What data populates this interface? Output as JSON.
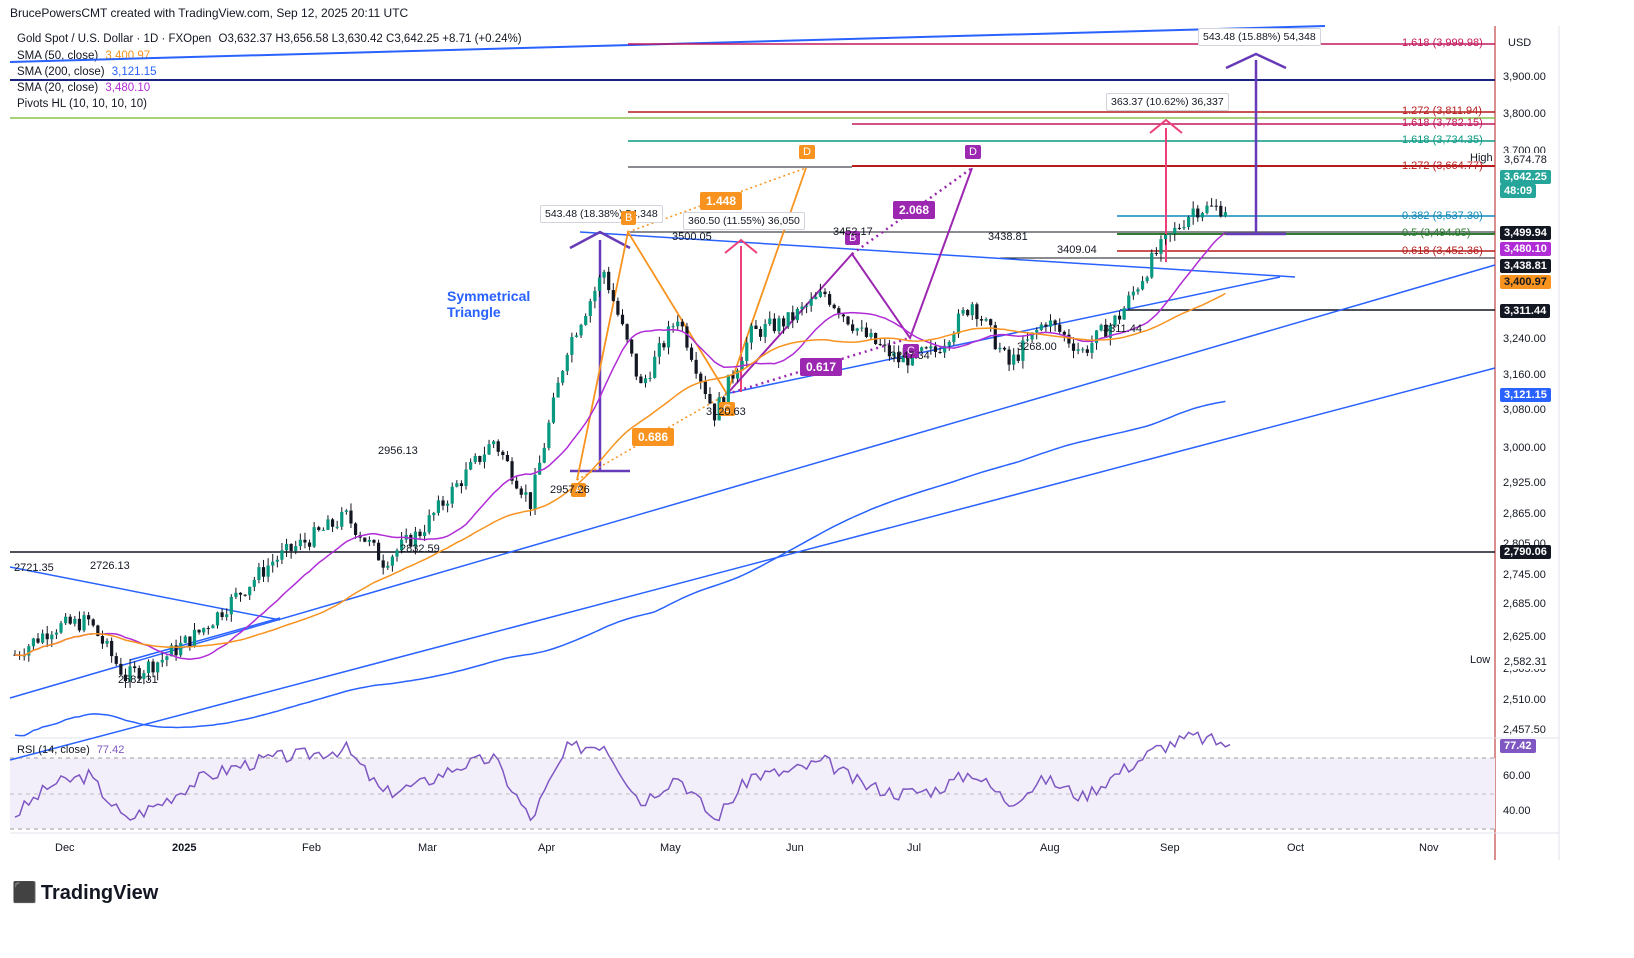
{
  "header": {
    "author_line": "BrucePowersCMT created with TradingView.com, Sep 12, 2025 20:11 UTC"
  },
  "legend": {
    "symbol": "Gold Spot / U.S. Dollar · 1D · FXOpen",
    "ohlc": "O3,632.37 H3,656.58 L3,630.42 C3,642.25 +8.71 (+0.24%)",
    "sma50": {
      "label": "SMA (50, close)",
      "value": "3,400.97",
      "color": "#f7931e"
    },
    "sma200": {
      "label": "SMA (200, close)",
      "value": "3,121.15",
      "color": "#2962ff"
    },
    "sma20": {
      "label": "SMA (20, close)",
      "value": "3,480.10",
      "color": "#b02cd6"
    },
    "pivots": {
      "label": "Pivots HL (10, 10, 10, 10)"
    }
  },
  "currency": "USD",
  "price_axis": [
    "3,900.00",
    "3,800.00",
    "3,700.00",
    "3,240.00",
    "3,160.00",
    "3,080.00",
    "3,000.00",
    "2,925.00",
    "2,865.00",
    "2,805.00",
    "2,745.00",
    "2,685.00",
    "2,625.00",
    "2,565.00",
    "2,510.00",
    "2,457.50"
  ],
  "price_tags": [
    {
      "label": "High",
      "value": "3,674.78",
      "bg": "#ffffff",
      "fg": "#131722"
    },
    {
      "label": "",
      "value": "3,642.25",
      "bg": "#26a69a",
      "fg": "#ffffff"
    },
    {
      "label": "",
      "value": "48:09",
      "bg": "#26a69a",
      "fg": "#ffffff"
    },
    {
      "label": "",
      "value": "3,499.94",
      "bg": "#131722",
      "fg": "#ffffff"
    },
    {
      "label": "",
      "value": "3,480.10",
      "bg": "#b02cd6",
      "fg": "#ffffff"
    },
    {
      "label": "",
      "value": "3,438.81",
      "bg": "#131722",
      "fg": "#ffffff"
    },
    {
      "label": "",
      "value": "3,400.97",
      "bg": "#f7931e",
      "fg": "#131722"
    },
    {
      "label": "",
      "value": "3,311.44",
      "bg": "#131722",
      "fg": "#ffffff"
    },
    {
      "label": "",
      "value": "3,121.15",
      "bg": "#2962ff",
      "fg": "#ffffff"
    },
    {
      "label": "",
      "value": "2,790.06",
      "bg": "#131722",
      "fg": "#ffffff"
    },
    {
      "label": "Low",
      "value": "2,582.31",
      "bg": "#ffffff",
      "fg": "#131722"
    }
  ],
  "fib_labels": [
    {
      "text": "1.618 (3,999.98)",
      "color": "#c2185b"
    },
    {
      "text": "1.272 (3,811.94)",
      "color": "#b71c1c"
    },
    {
      "text": "1.618 (3,782.15)",
      "color": "#c2185b"
    },
    {
      "text": "1.618 (3,734.35)",
      "color": "#089981"
    },
    {
      "text": "1.272 (3,664.77)",
      "color": "#b71c1c"
    },
    {
      "text": "0.382 (3,537.30)",
      "color": "#0e88b8"
    },
    {
      "text": "0.5 (3,494.85)",
      "color": "#2e7d32"
    },
    {
      "text": "0.618 (3,452.36)",
      "color": "#b71c1c"
    }
  ],
  "measure_labels": [
    "543.48 (15.88%) 54,348",
    "363.37 (10.62%) 36,337",
    "543.48 (18.38%) 54,348",
    "360.50 (11.55%) 36,050"
  ],
  "pattern": {
    "title_line1": "Symmetrical",
    "title_line2": "Triangle",
    "orange_points": [
      "A",
      "B",
      "C",
      "D"
    ],
    "purple_points": [
      "B",
      "C",
      "D"
    ],
    "ratios": [
      "1.448",
      "0.686",
      "2.068",
      "0.617"
    ]
  },
  "chart_annotations": [
    "2721.35",
    "2726.13",
    "2582.31",
    "2956.13",
    "2832.59",
    "2957.26",
    "3500.05",
    "3120.63",
    "3452.17",
    "3438.81",
    "3409.04",
    "3247.34",
    "3268.00",
    "3311.44"
  ],
  "rsi": {
    "label": "RSI (14, close)",
    "value": "77.42",
    "levels": [
      "60.00",
      "40.00"
    ],
    "color": "#7e57c2"
  },
  "time_axis": [
    "Dec",
    "2025",
    "Feb",
    "Mar",
    "Apr",
    "May",
    "Jun",
    "Jul",
    "Aug",
    "Sep",
    "Oct",
    "Nov"
  ],
  "brand": "TradingView",
  "chart_data": {
    "type": "line",
    "title": "Gold Spot / U.S. Dollar · 1D · FXOpen",
    "ylabel": "USD",
    "ylim": [
      2457.5,
      4050
    ],
    "x": [
      "2024-11-22",
      "2024-12-02",
      "2024-12-12",
      "2024-12-19",
      "2025-01-02",
      "2025-01-13",
      "2025-01-24",
      "2025-02-03",
      "2025-02-11",
      "2025-02-20",
      "2025-03-03",
      "2025-03-11",
      "2025-03-20",
      "2025-04-01",
      "2025-04-08",
      "2025-04-16",
      "2025-04-22",
      "2025-05-01",
      "2025-05-06",
      "2025-05-15",
      "2025-05-23",
      "2025-06-02",
      "2025-06-13",
      "2025-06-20",
      "2025-06-30",
      "2025-07-09",
      "2025-07-22",
      "2025-07-30",
      "2025-08-08",
      "2025-08-20",
      "2025-08-27",
      "2025-09-03",
      "2025-09-09",
      "2025-09-12"
    ],
    "series": [
      {
        "values": [
          2640,
          2700,
          2715,
          2590,
          2630,
          2690,
          2770,
          2850,
          2900,
          2950,
          2850,
          2915,
          3020,
          3120,
          2980,
          3330,
          3500,
          3240,
          3400,
          3180,
          3360,
          3390,
          3450,
          3360,
          3300,
          3320,
          3430,
          3290,
          3390,
          3320,
          3400,
          3540,
          3640,
          3642.25
        ]
      }
    ],
    "rsi": [
      38,
      55,
      60,
      35,
      45,
      58,
      65,
      70,
      72,
      75,
      50,
      55,
      65,
      70,
      35,
      75,
      78,
      45,
      60,
      35,
      60,
      62,
      68,
      55,
      50,
      52,
      62,
      45,
      58,
      48,
      62,
      75,
      82,
      77.42
    ]
  }
}
